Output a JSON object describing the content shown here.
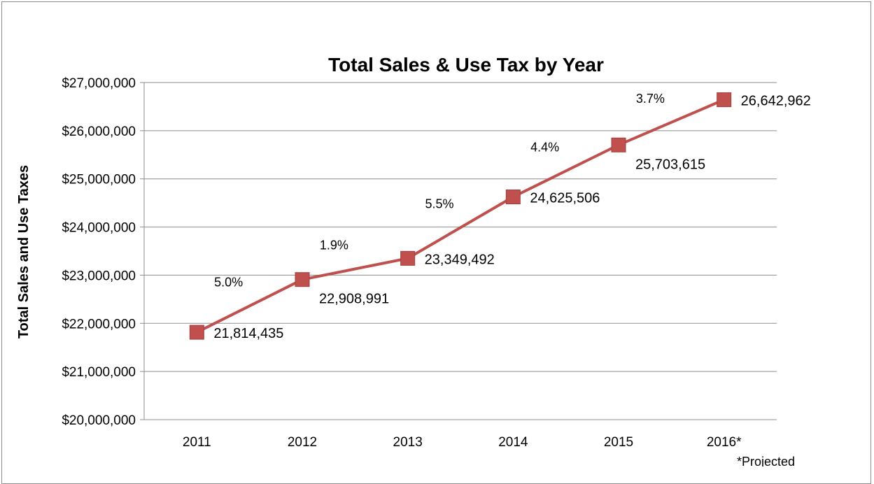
{
  "chart_data": {
    "type": "line",
    "title": "Total Sales & Use Tax by Year",
    "xlabel": "",
    "ylabel": "Total Sales and Use Taxes",
    "categories": [
      "2011",
      "2012",
      "2013",
      "2014",
      "2015",
      "2016*"
    ],
    "series": [
      {
        "values": [
          21814435,
          22908991,
          23349492,
          24625506,
          25703615,
          26642962
        ],
        "data_labels": [
          "21,814,435",
          "22,908,991",
          "23,349,492",
          "24,625,506",
          "25,703,615",
          "26,642,962"
        ],
        "color": "#c0504d"
      }
    ],
    "growth_labels": [
      "5.0%",
      "1.9%",
      "5.5%",
      "4.4%",
      "3.7%"
    ],
    "ylim": [
      20000000,
      27000000
    ],
    "ytick_step": 1000000,
    "ytick_labels": [
      "$20,000,000",
      "$21,000,000",
      "$22,000,000",
      "$23,000,000",
      "$24,000,000",
      "$25,000,000",
      "$26,000,000",
      "$27,000,000"
    ],
    "grid": true,
    "legend": "none",
    "footnote": "*Projected"
  }
}
